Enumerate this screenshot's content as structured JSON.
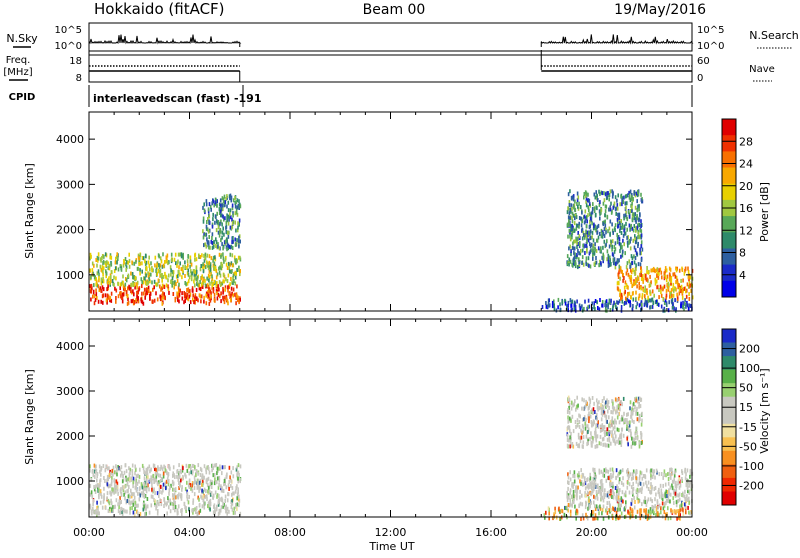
{
  "header": {
    "title": "Hokkaido (fitACF)",
    "beam": "Beam 00",
    "date": "19/May/2016"
  },
  "top_panels": {
    "nsky_label": "N.Sky",
    "nsky_ticks": [
      "10^5",
      "10^0"
    ],
    "nsearch_label": "N.Search",
    "nsearch_ticks": [
      "10^5",
      "10^0"
    ],
    "freq_label_line1": "Freq.",
    "freq_label_line2": "[MHz]",
    "freq_ticks": [
      "18",
      "8"
    ],
    "nave_label": "Nave",
    "nave_ticks": [
      "60",
      "0"
    ],
    "cpid_label": "CPID",
    "cpid_text": "interleavedscan (fast) -191"
  },
  "colorbars": {
    "power": {
      "label": "Power [dB]",
      "ticks": [
        "28",
        "24",
        "20",
        "16",
        "12",
        "8",
        "4"
      ],
      "colors": [
        "#e00000",
        "#f03000",
        "#f87000",
        "#f8a800",
        "#e8d000",
        "#a0c840",
        "#58a858",
        "#2e8a6a",
        "#2d5fa0",
        "#1a2ac8",
        "#0000e8"
      ]
    },
    "velocity": {
      "label": "Velocity [m s⁻¹]",
      "ticks": [
        "200",
        "100",
        "50",
        "15",
        "-15",
        "-50",
        "-100",
        "-200"
      ],
      "colors": [
        "#1a2ac8",
        "#2d5fa0",
        "#2e8a6a",
        "#58b048",
        "#98d070",
        "#c8c8c0",
        "#c8c8c0",
        "#f0e0a0",
        "#f8c050",
        "#f89020",
        "#f06010",
        "#f02800",
        "#e00000"
      ]
    }
  },
  "chart_data": [
    {
      "type": "heatmap",
      "name": "power",
      "ylabel": "Slant Range [km]",
      "xlabel": "Time UT",
      "x_ticks": [
        "00:00",
        "04:00",
        "08:00",
        "12:00",
        "16:00",
        "20:00",
        "00:00"
      ],
      "y_ticks": [
        1000,
        2000,
        3000,
        4000
      ],
      "ylim": [
        200,
        4600
      ],
      "xlim_hours": [
        0,
        24
      ],
      "data_intervals_hours": [
        [
          0,
          6
        ],
        [
          18,
          24
        ]
      ],
      "regions": [
        {
          "t": [
            0,
            6
          ],
          "r": [
            400,
            800
          ],
          "level": "28"
        },
        {
          "t": [
            0,
            6
          ],
          "r": [
            800,
            1500
          ],
          "level": "16"
        },
        {
          "t": [
            4.5,
            6
          ],
          "r": [
            1600,
            2800
          ],
          "level": "12"
        },
        {
          "t": [
            18,
            24
          ],
          "r": [
            250,
            500
          ],
          "level": "8"
        },
        {
          "t": [
            21,
            24
          ],
          "r": [
            500,
            1200
          ],
          "level": "24"
        },
        {
          "t": [
            19,
            22
          ],
          "r": [
            1200,
            2900
          ],
          "level": "12"
        }
      ]
    },
    {
      "type": "heatmap",
      "name": "velocity",
      "ylabel": "Slant Range [km]",
      "xlabel": "Time UT",
      "x_ticks": [
        "00:00",
        "04:00",
        "08:00",
        "12:00",
        "16:00",
        "20:00",
        "00:00"
      ],
      "y_ticks": [
        1000,
        2000,
        3000,
        4000
      ],
      "ylim": [
        200,
        4600
      ],
      "xlim_hours": [
        0,
        24
      ],
      "data_intervals_hours": [
        [
          0,
          6
        ],
        [
          18,
          24
        ]
      ],
      "regions": [
        {
          "t": [
            0,
            6
          ],
          "r": [
            300,
            1400
          ],
          "level": "-15 to 15"
        },
        {
          "t": [
            18,
            24
          ],
          "r": [
            200,
            450
          ],
          "level": "-50"
        },
        {
          "t": [
            19,
            24
          ],
          "r": [
            450,
            1300
          ],
          "level": "-15 to 15"
        },
        {
          "t": [
            19,
            22
          ],
          "r": [
            1800,
            2900
          ],
          "level": "-15 to 15"
        }
      ]
    }
  ]
}
